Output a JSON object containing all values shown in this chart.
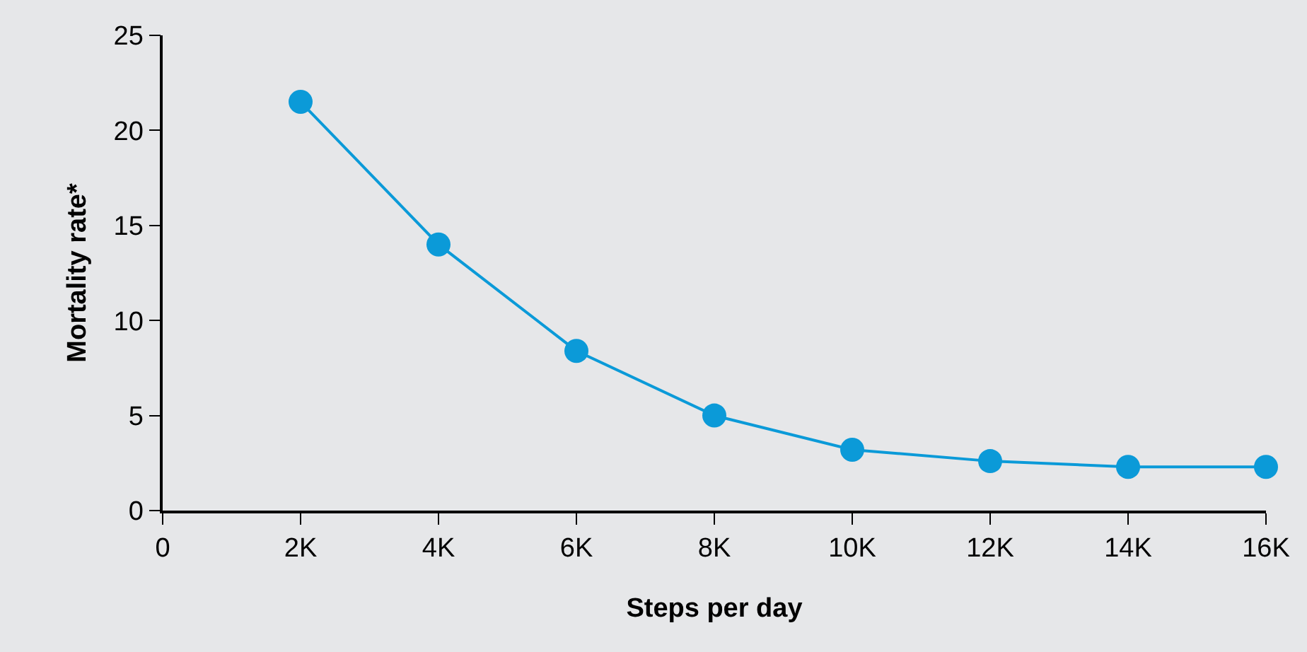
{
  "chart_data": {
    "type": "line",
    "xlabel": "Steps per day",
    "ylabel": "Mortality rate*",
    "x": [
      2000,
      4000,
      6000,
      8000,
      10000,
      12000,
      14000,
      16000
    ],
    "series": [
      {
        "color": "#0b9ad8",
        "values": [
          21.5,
          14.0,
          8.4,
          5.0,
          3.2,
          2.6,
          2.3,
          2.3
        ]
      }
    ],
    "xlim": [
      0,
      16000
    ],
    "xticks": [
      0,
      {
        "value": 2000,
        "label": "2K"
      },
      {
        "value": 4000,
        "label": "4K"
      },
      {
        "value": 6000,
        "label": "6K"
      },
      {
        "value": 8000,
        "label": "8K"
      },
      {
        "value": 10000,
        "label": "10K"
      },
      {
        "value": 12000,
        "label": "12K"
      },
      {
        "value": 14000,
        "label": "14K"
      },
      {
        "value": 16000,
        "label": "16K"
      }
    ],
    "ylim": [
      0,
      25
    ],
    "yticks": [
      0,
      5,
      10,
      15,
      20,
      25
    ],
    "grid": false,
    "marker": "circle",
    "line_style": "solid"
  }
}
